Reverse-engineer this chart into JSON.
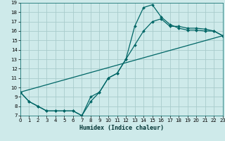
{
  "xlabel": "Humidex (Indice chaleur)",
  "bg_color": "#ceeaea",
  "grid_color": "#a8cccc",
  "line_color": "#006666",
  "xlim": [
    0,
    23
  ],
  "ylim": [
    7,
    19
  ],
  "xticks": [
    0,
    1,
    2,
    3,
    4,
    5,
    6,
    7,
    8,
    9,
    10,
    11,
    12,
    13,
    14,
    15,
    16,
    17,
    18,
    19,
    20,
    21,
    22,
    23
  ],
  "yticks": [
    7,
    8,
    9,
    10,
    11,
    12,
    13,
    14,
    15,
    16,
    17,
    18,
    19
  ],
  "line1_x": [
    0,
    1,
    2,
    3,
    4,
    5,
    6,
    7,
    8,
    9,
    10,
    11,
    12,
    13,
    14,
    15,
    16,
    17,
    18,
    19,
    20,
    21,
    22,
    23
  ],
  "line1_y": [
    9.5,
    8.5,
    8.0,
    7.5,
    7.5,
    7.5,
    7.5,
    7.0,
    9.0,
    9.5,
    11.0,
    11.5,
    13.0,
    14.5,
    16.0,
    17.0,
    17.3,
    16.5,
    16.5,
    16.3,
    16.3,
    16.2,
    16.0,
    15.5
  ],
  "line2_x": [
    0,
    1,
    2,
    3,
    4,
    5,
    6,
    7,
    8,
    9,
    10,
    11,
    12,
    13,
    14,
    15,
    16,
    17,
    18,
    19,
    20,
    21,
    22,
    23
  ],
  "line2_y": [
    9.5,
    8.5,
    8.0,
    7.5,
    7.5,
    7.5,
    7.5,
    7.0,
    8.5,
    9.5,
    11.0,
    11.5,
    13.0,
    16.5,
    18.5,
    18.8,
    17.5,
    16.7,
    16.3,
    16.1,
    16.1,
    16.0,
    16.0,
    15.5
  ],
  "line3_x": [
    0,
    23
  ],
  "line3_y": [
    9.5,
    15.5
  ],
  "marker": "D",
  "marker_size": 2.0,
  "linewidth": 0.9
}
